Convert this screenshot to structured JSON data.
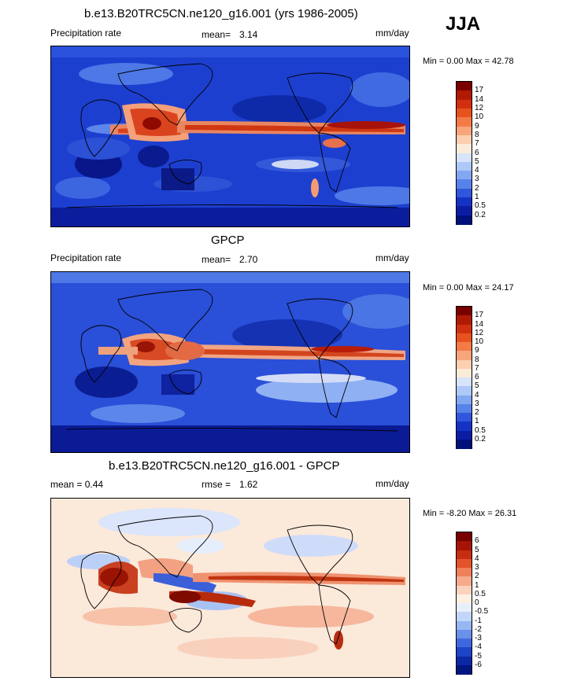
{
  "season": "JJA",
  "panels": [
    {
      "title": "b.e13.B20TRC5CN.ne120_g16.001 (yrs 1986-2005)",
      "left_label": "Precipitation rate",
      "stat1_label": "mean=",
      "stat1_value": "3.14",
      "units": "mm/day",
      "minmax": "Min =   0.00 Max =  42.78",
      "levels": [
        "17",
        "14",
        "12",
        "10",
        "9",
        "8",
        "7",
        "6",
        "5",
        "4",
        "3",
        "2",
        "1",
        "0.5",
        "0.2"
      ]
    },
    {
      "title": "GPCP",
      "left_label": "Precipitation rate",
      "stat1_label": "mean=",
      "stat1_value": "2.70",
      "units": "mm/day",
      "minmax": "Min =   0.00 Max =  24.17",
      "levels": [
        "17",
        "14",
        "12",
        "10",
        "9",
        "8",
        "7",
        "6",
        "5",
        "4",
        "3",
        "2",
        "1",
        "0.5",
        "0.2"
      ]
    },
    {
      "title": "b.e13.B20TRC5CN.ne120_g16.001 - GPCP",
      "left_label": "mean =   0.44",
      "stat1_label": "rmse =",
      "stat1_value": "1.62",
      "units": "mm/day",
      "minmax": "Min =  -8.20 Max =  26.31",
      "levels": [
        "6",
        "5",
        "4",
        "3",
        "2",
        "1",
        "0.5",
        "0",
        "-0.5",
        "-1",
        "-2",
        "-3",
        "-4",
        "-5",
        "-6"
      ]
    }
  ],
  "colors": {
    "precip_scale": [
      "#7a0000",
      "#b01a05",
      "#d1300e",
      "#e8521f",
      "#f27b47",
      "#f7a57b",
      "#fbcfb0",
      "#fbecd9",
      "#d6e4fb",
      "#aec8f8",
      "#82a8f2",
      "#5882ea",
      "#2f56dc",
      "#1432c4",
      "#0a1ea3",
      "#02107a"
    ],
    "diff_scale": [
      "#7a0000",
      "#a51406",
      "#c82d12",
      "#e2532b",
      "#f0805a",
      "#f6ab8d",
      "#fbd3bd",
      "#fdf0e3",
      "#e7effd",
      "#c2d6fa",
      "#97b6f4",
      "#6b90eb",
      "#4068de",
      "#1e44c8",
      "#0c29a5",
      "#03157e"
    ]
  }
}
